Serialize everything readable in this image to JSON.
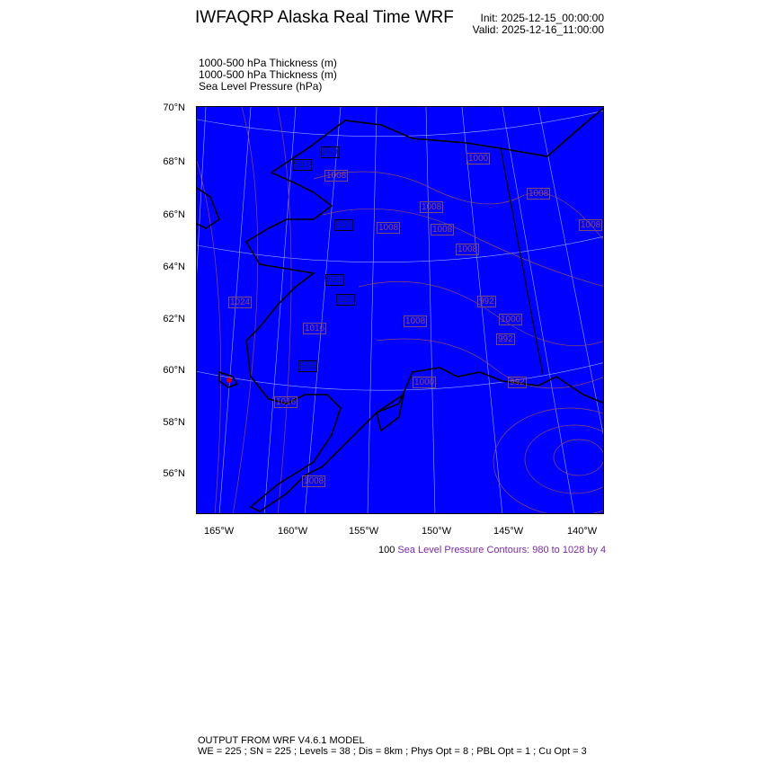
{
  "header": {
    "title": "IWFAQRP Alaska Real Time WRF",
    "init": "Init: 2025-12-15_00:00:00",
    "valid": "Valid: 2025-12-16_11:00:00"
  },
  "fields": [
    "1000-500 hPa Thickness   (m)",
    "1000-500 hPa Thickness   (m)",
    "Sea Level Pressure   (hPa)"
  ],
  "map": {
    "background_color": "#0000ff",
    "lat_labels": [
      "70°N",
      "68°N",
      "66°N",
      "64°N",
      "62°N",
      "60°N",
      "58°N",
      "56°N"
    ],
    "lon_labels": [
      "165°W",
      "160°W",
      "155°W",
      "150°W",
      "145°W",
      "140°W"
    ],
    "contour_labels": [
      "510",
      "510",
      "1008",
      "1000",
      "1008",
      "1008",
      "1008",
      "1008",
      "510",
      "1008",
      "1008",
      "522",
      "1024",
      "522",
      "1016",
      "1008",
      "992",
      "1000",
      "992",
      "992",
      "516",
      "1000",
      "1016",
      "1008"
    ]
  },
  "contour_info": {
    "lead": "100",
    "text": "Sea Level Pressure Contours: 980 to 1028 by 4",
    "color": "#7b2aa3"
  },
  "footer": {
    "line1": "OUTPUT FROM WRF V4.6.1 MODEL",
    "line2": "WE = 225 ; SN = 225 ; Levels = 38 ; Dis = 8km ; Phys Opt = 8 ; PBL Opt = 1 ; Cu Opt = 3"
  }
}
